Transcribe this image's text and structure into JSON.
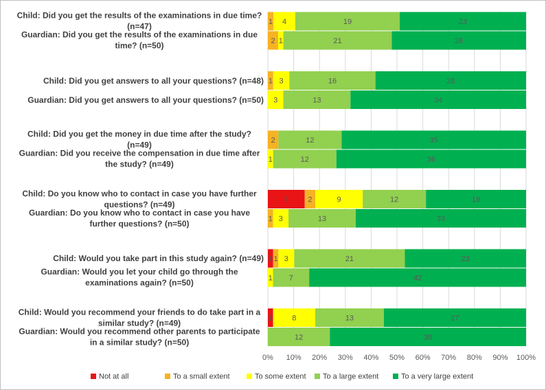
{
  "chart_data": {
    "type": "bar",
    "orientation": "horizontal",
    "stacking": "percent",
    "categories": [
      "Child: Did you get the results of the examinations in due time? (n=47)",
      "Guardian: Did you get the results of the examinations in due time? (n=50)",
      "Child: Did you get answers to all your questions? (n=48)",
      "Guardian: Did you get answers to all your questions? (n=50)",
      "Child: Did you get the money in due time after the study? (n=49)",
      "Guardian: Did you receive the compensation in due time after the study? (n=49)",
      "Child: Do you know who to contact in case you have further questions? (n=49)",
      "Guardian: Do you know who to contact in case you have further questions? (n=50)",
      "Child: Would you take part in this study again? (n=49)",
      "Guardian: Would you let your child go through the examinations again? (n=50)",
      "Child: Would you recommend your friends to do take part in a similar study? (n=49)",
      "Guardian: Would you recommend other parents to participate in a similar study? (n=50)"
    ],
    "series": [
      {
        "name": "Not at all",
        "color": "#e81416",
        "values": [
          null,
          null,
          null,
          null,
          null,
          null,
          7,
          null,
          1,
          null,
          1,
          null
        ]
      },
      {
        "name": "To a small extent",
        "color": "#f5b324",
        "values": [
          1,
          2,
          1,
          null,
          2,
          null,
          2,
          1,
          1,
          null,
          null,
          null
        ]
      },
      {
        "name": "To some extent",
        "color": "#ffff00",
        "values": [
          4,
          1,
          3,
          3,
          null,
          1,
          9,
          3,
          3,
          1,
          8,
          null
        ]
      },
      {
        "name": "To a large extent",
        "color": "#92d050",
        "values": [
          19,
          21,
          16,
          13,
          12,
          12,
          12,
          13,
          21,
          7,
          13,
          12
        ]
      },
      {
        "name": "To a very large extent",
        "color": "#00b050",
        "values": [
          23,
          26,
          28,
          34,
          35,
          36,
          19,
          33,
          23,
          42,
          27,
          38
        ]
      }
    ],
    "xlim": [
      0,
      100
    ],
    "xticks": [
      {
        "value": 0,
        "label": "0%"
      },
      {
        "value": 10,
        "label": "10%"
      },
      {
        "value": 20,
        "label": "20%"
      },
      {
        "value": 30,
        "label": "30%"
      },
      {
        "value": 40,
        "label": "40%"
      },
      {
        "value": 50,
        "label": "50%"
      },
      {
        "value": 60,
        "label": "60%"
      },
      {
        "value": 70,
        "label": "70%"
      },
      {
        "value": 80,
        "label": "80%"
      },
      {
        "value": 90,
        "label": "90%"
      },
      {
        "value": 100,
        "label": "100%"
      }
    ],
    "grid": true,
    "legend": "bottom"
  }
}
